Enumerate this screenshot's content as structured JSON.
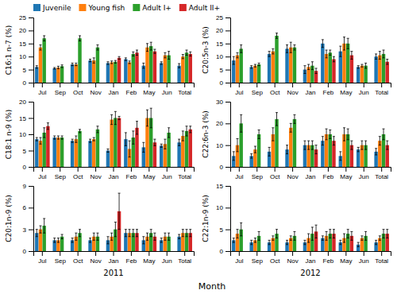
{
  "chart_data": [
    {
      "type": "bar",
      "ylabel": "C16:1 n-7 (%)",
      "categories": [
        "Jul",
        "Sep",
        "Oct",
        "Nov",
        "Jan",
        "Feb",
        "May",
        "Jun",
        "Total"
      ],
      "ylim": [
        0,
        25
      ],
      "yticks": [
        0,
        5,
        10,
        15,
        20,
        25
      ],
      "legend": "upper left",
      "series": [
        {
          "name": "Juvenile",
          "values": [
            6.0,
            5.5,
            7.0,
            8.5,
            7.5,
            9.0,
            6.5,
            7.5,
            6.5
          ],
          "errors": [
            0.5,
            0.3,
            0.5,
            0.5,
            0.5,
            0.5,
            1.0,
            0.5,
            0.8
          ]
        },
        {
          "name": "Young fish",
          "values": [
            13.5,
            5.8,
            7.0,
            8.5,
            7.8,
            7.8,
            13.5,
            10.5,
            10.0
          ],
          "errors": [
            1.0,
            0.5,
            0.5,
            1.0,
            0.5,
            0.5,
            1.5,
            1.0,
            0.8
          ]
        },
        {
          "name": "Adult I+",
          "values": [
            17.0,
            6.3,
            17.0,
            13.5,
            8.0,
            11.0,
            14.0,
            10.5,
            11.5
          ],
          "errors": [
            1.0,
            0.5,
            1.0,
            1.0,
            0.5,
            0.8,
            1.5,
            1.5,
            1.0
          ]
        },
        {
          "name": "Adult II+",
          "values": [
            null,
            null,
            null,
            null,
            9.5,
            11.5,
            12.0,
            null,
            11.0
          ],
          "errors": [
            null,
            null,
            null,
            null,
            0.5,
            1.0,
            0.8,
            null,
            0.8
          ]
        }
      ]
    },
    {
      "type": "bar",
      "ylabel": "C20:5n-3 (%)",
      "categories": [
        "Jul",
        "Sep",
        "Oct",
        "Nov",
        "Jan",
        "Feb",
        "May",
        "Jun",
        "Total"
      ],
      "ylim": [
        0,
        25
      ],
      "yticks": [
        0,
        5,
        10,
        15,
        20,
        25
      ],
      "series": [
        {
          "name": "Juvenile",
          "values": [
            8.5,
            6.0,
            11.0,
            13.0,
            5.0,
            15.0,
            12.0,
            6.0,
            10.0
          ],
          "errors": [
            1.5,
            0.5,
            1.0,
            1.5,
            1.5,
            1.5,
            2.0,
            0.5,
            1.0
          ]
        },
        {
          "name": "Young fish",
          "values": [
            10.5,
            6.5,
            12.0,
            13.5,
            6.0,
            11.0,
            15.0,
            6.5,
            10.5
          ],
          "errors": [
            1.0,
            0.5,
            1.0,
            2.0,
            1.0,
            1.5,
            2.5,
            0.5,
            1.5
          ]
        },
        {
          "name": "Adult I+",
          "values": [
            13.0,
            7.0,
            18.0,
            13.5,
            6.5,
            11.5,
            15.0,
            6.5,
            11.0
          ],
          "errors": [
            1.5,
            0.5,
            1.0,
            1.0,
            1.5,
            1.0,
            2.0,
            1.0,
            1.5
          ]
        },
        {
          "name": "Adult II+",
          "values": [
            null,
            null,
            null,
            null,
            4.5,
            9.0,
            10.5,
            null,
            8.0
          ],
          "errors": [
            null,
            null,
            null,
            null,
            1.0,
            1.0,
            1.5,
            null,
            1.0
          ]
        }
      ]
    },
    {
      "type": "bar",
      "ylabel": "C18:1 n-9 (%)",
      "categories": [
        "Jul",
        "Sep",
        "Oct",
        "Nov",
        "Jan",
        "Feb",
        "May",
        "Jun",
        "Total"
      ],
      "ylim": [
        0,
        20
      ],
      "yticks": [
        0,
        5,
        10,
        15,
        20
      ],
      "series": [
        {
          "name": "Juvenile",
          "values": [
            8.5,
            9.0,
            8.0,
            8.0,
            5.0,
            8.5,
            6.0,
            6.5,
            7.5
          ],
          "errors": [
            0.5,
            0.5,
            0.5,
            0.5,
            0.5,
            2.0,
            1.5,
            0.5,
            1.0
          ]
        },
        {
          "name": "Young fish",
          "values": [
            8.0,
            9.0,
            8.5,
            8.5,
            14.5,
            5.5,
            15.0,
            7.0,
            9.5
          ],
          "errors": [
            1.0,
            0.5,
            1.0,
            0.5,
            1.5,
            2.5,
            2.5,
            1.5,
            1.5
          ]
        },
        {
          "name": "Adult I+",
          "values": [
            10.5,
            9.0,
            11.0,
            11.5,
            15.0,
            9.0,
            15.0,
            10.5,
            11.0
          ],
          "errors": [
            1.5,
            0.5,
            0.5,
            1.0,
            2.0,
            2.0,
            3.0,
            1.5,
            1.5
          ]
        },
        {
          "name": "Adult II+",
          "values": [
            12.5,
            null,
            null,
            null,
            15.0,
            12.0,
            7.5,
            null,
            11.5
          ],
          "errors": [
            1.0,
            null,
            null,
            null,
            0.5,
            2.0,
            1.0,
            null,
            1.0
          ]
        }
      ]
    },
    {
      "type": "bar",
      "ylabel": "C22:6n-3 (%)",
      "categories": [
        "Jul",
        "Sep",
        "Oct",
        "Nov",
        "Jan",
        "Feb",
        "May",
        "Jun",
        "Total"
      ],
      "ylim": [
        0,
        30
      ],
      "yticks": [
        0,
        10,
        20,
        30
      ],
      "series": [
        {
          "name": "Juvenile",
          "values": [
            5.0,
            5.0,
            7.0,
            8.0,
            10.0,
            12.0,
            5.0,
            8.0,
            7.0
          ],
          "errors": [
            2.0,
            1.0,
            2.0,
            2.0,
            2.0,
            2.0,
            2.0,
            1.0,
            1.5
          ]
        },
        {
          "name": "Young fish",
          "values": [
            10.0,
            8.0,
            15.0,
            18.0,
            10.0,
            15.0,
            15.0,
            10.0,
            12.0
          ],
          "errors": [
            3.0,
            1.5,
            3.0,
            2.0,
            2.0,
            2.5,
            3.0,
            2.0,
            2.0
          ]
        },
        {
          "name": "Adult I+",
          "values": [
            20.0,
            15.0,
            22.0,
            22.0,
            10.0,
            15.0,
            15.0,
            10.0,
            15.0
          ],
          "errors": [
            4.0,
            2.0,
            3.0,
            2.0,
            2.0,
            2.0,
            2.5,
            2.0,
            2.5
          ]
        },
        {
          "name": "Adult II+",
          "values": [
            null,
            null,
            null,
            null,
            8.0,
            12.0,
            10.0,
            null,
            10.0
          ],
          "errors": [
            null,
            null,
            null,
            null,
            2.0,
            2.0,
            2.0,
            null,
            2.0
          ]
        }
      ]
    },
    {
      "type": "bar",
      "ylabel": "C20:1n-9 (%)",
      "xlabel": "Month",
      "annotations": [
        "2011"
      ],
      "categories": [
        "Jul",
        "Sep",
        "Oct",
        "Nov",
        "Jan",
        "Feb",
        "May",
        "Jun",
        "Total"
      ],
      "ylim": [
        0,
        9
      ],
      "yticks": [
        0,
        3,
        6,
        9
      ],
      "series": [
        {
          "name": "Juvenile",
          "values": [
            2.5,
            1.5,
            1.5,
            1.5,
            1.5,
            2.5,
            1.5,
            1.5,
            2.0
          ],
          "errors": [
            0.5,
            0.3,
            0.3,
            0.3,
            0.5,
            0.5,
            0.5,
            0.3,
            0.3
          ]
        },
        {
          "name": "Young fish",
          "values": [
            3.0,
            1.5,
            2.0,
            2.0,
            2.0,
            2.5,
            2.0,
            2.0,
            2.5
          ],
          "errors": [
            0.5,
            0.3,
            0.5,
            0.5,
            0.5,
            0.5,
            0.5,
            0.5,
            0.5
          ]
        },
        {
          "name": "Adult I+",
          "values": [
            3.5,
            2.0,
            2.5,
            2.0,
            3.0,
            2.5,
            2.5,
            2.0,
            2.5
          ],
          "errors": [
            1.0,
            0.3,
            0.5,
            0.5,
            1.0,
            0.5,
            0.5,
            0.5,
            0.5
          ]
        },
        {
          "name": "Adult II+",
          "values": [
            null,
            null,
            null,
            null,
            5.5,
            2.5,
            2.0,
            null,
            2.5
          ],
          "errors": [
            null,
            null,
            null,
            null,
            2.5,
            0.5,
            0.5,
            null,
            0.5
          ]
        }
      ]
    },
    {
      "type": "bar",
      "ylabel": "C22:1n-9 (%)",
      "annotations": [
        "2012"
      ],
      "categories": [
        "Jul",
        "Sep",
        "Oct",
        "Nov",
        "Jan",
        "Feb",
        "May",
        "Jun",
        "Total"
      ],
      "ylim": [
        0,
        15
      ],
      "yticks": [
        0,
        5,
        10,
        15
      ],
      "series": [
        {
          "name": "Juvenile",
          "values": [
            2.5,
            2.0,
            2.0,
            2.0,
            2.0,
            3.0,
            2.0,
            1.5,
            2.0
          ],
          "errors": [
            0.5,
            0.5,
            0.5,
            0.5,
            0.5,
            0.5,
            0.5,
            0.5,
            0.5
          ]
        },
        {
          "name": "Young fish",
          "values": [
            4.0,
            2.5,
            3.0,
            3.0,
            3.0,
            3.5,
            3.0,
            3.0,
            3.0
          ],
          "errors": [
            1.0,
            0.5,
            0.5,
            0.5,
            1.0,
            1.0,
            1.0,
            0.5,
            0.5
          ]
        },
        {
          "name": "Adult I+",
          "values": [
            5.0,
            3.5,
            4.0,
            3.5,
            4.0,
            4.0,
            4.0,
            3.5,
            4.0
          ],
          "errors": [
            1.5,
            1.0,
            1.0,
            1.0,
            1.5,
            1.0,
            1.0,
            1.0,
            1.0
          ]
        },
        {
          "name": "Adult II+",
          "values": [
            null,
            null,
            null,
            null,
            4.5,
            4.0,
            3.5,
            null,
            4.0
          ],
          "errors": [
            null,
            null,
            null,
            null,
            1.5,
            1.0,
            1.0,
            null,
            1.0
          ]
        }
      ]
    }
  ]
}
